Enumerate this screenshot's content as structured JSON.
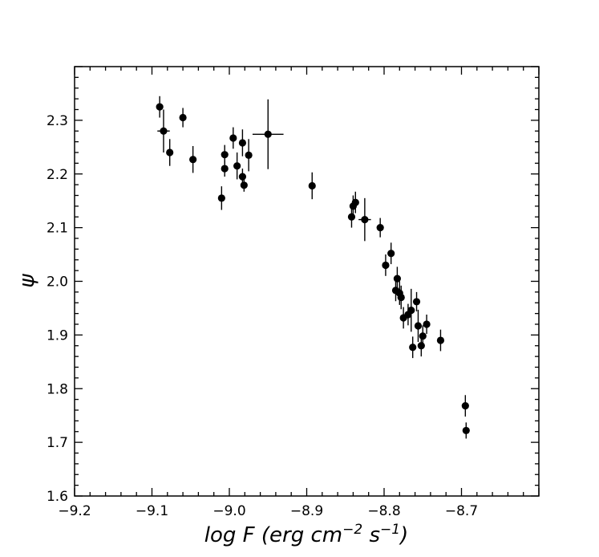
{
  "chart_data": {
    "type": "scatter",
    "xlabel": "log F (erg cm",
    "xlabel_exp1": "−2",
    "xlabel_mid": " s",
    "xlabel_exp2": "−1",
    "xlabel_end": ")",
    "ylabel": "ψ",
    "xlim": [
      -9.2,
      -8.6
    ],
    "ylim": [
      1.6,
      2.4
    ],
    "x_ticks": [
      -9.2,
      -9.1,
      -9.0,
      -8.9,
      -8.8,
      -8.7
    ],
    "x_tick_labels": [
      "−9.2",
      "−9.1",
      "−9.0",
      "−8.9",
      "−8.8",
      "−8.7"
    ],
    "y_ticks": [
      1.6,
      1.7,
      1.8,
      1.9,
      2.0,
      2.1,
      2.2,
      2.3
    ],
    "y_tick_labels": [
      "1.6",
      "1.7",
      "1.8",
      "1.9",
      "2.0",
      "2.1",
      "2.2",
      "2.3"
    ],
    "grid": false,
    "marker_color": "#000000",
    "points": [
      {
        "x": -9.09,
        "y": 2.325,
        "yerr": 0.02,
        "xerr": 0
      },
      {
        "x": -9.085,
        "y": 2.28,
        "yerr": 0.04,
        "xerr": 0.008
      },
      {
        "x": -9.077,
        "y": 2.24,
        "yerr": 0.025,
        "xerr": 0
      },
      {
        "x": -9.06,
        "y": 2.305,
        "yerr": 0.018,
        "xerr": 0
      },
      {
        "x": -9.047,
        "y": 2.227,
        "yerr": 0.025,
        "xerr": 0
      },
      {
        "x": -9.01,
        "y": 2.155,
        "yerr": 0.022,
        "xerr": 0
      },
      {
        "x": -9.006,
        "y": 2.236,
        "yerr": 0.018,
        "xerr": 0
      },
      {
        "x": -9.006,
        "y": 2.21,
        "yerr": 0.015,
        "xerr": 0
      },
      {
        "x": -8.995,
        "y": 2.267,
        "yerr": 0.02,
        "xerr": 0
      },
      {
        "x": -8.99,
        "y": 2.215,
        "yerr": 0.025,
        "xerr": 0
      },
      {
        "x": -8.983,
        "y": 2.258,
        "yerr": 0.025,
        "xerr": 0
      },
      {
        "x": -8.983,
        "y": 2.195,
        "yerr": 0.015,
        "xerr": 0
      },
      {
        "x": -8.981,
        "y": 2.179,
        "yerr": 0.012,
        "xerr": 0
      },
      {
        "x": -8.975,
        "y": 2.235,
        "yerr": 0.03,
        "xerr": 0
      },
      {
        "x": -8.95,
        "y": 2.274,
        "yerr": 0.065,
        "xerr": 0.02
      },
      {
        "x": -8.893,
        "y": 2.178,
        "yerr": 0.025,
        "xerr": 0
      },
      {
        "x": -8.842,
        "y": 2.12,
        "yerr": 0.02,
        "xerr": 0
      },
      {
        "x": -8.84,
        "y": 2.14,
        "yerr": 0.02,
        "xerr": 0
      },
      {
        "x": -8.837,
        "y": 2.147,
        "yerr": 0.02,
        "xerr": 0
      },
      {
        "x": -8.825,
        "y": 2.115,
        "yerr": 0.04,
        "xerr": 0.008
      },
      {
        "x": -8.805,
        "y": 2.1,
        "yerr": 0.018,
        "xerr": 0
      },
      {
        "x": -8.798,
        "y": 2.03,
        "yerr": 0.02,
        "xerr": 0
      },
      {
        "x": -8.791,
        "y": 2.052,
        "yerr": 0.02,
        "xerr": 0
      },
      {
        "x": -8.785,
        "y": 1.983,
        "yerr": 0.02,
        "xerr": 0
      },
      {
        "x": -8.783,
        "y": 2.005,
        "yerr": 0.022,
        "xerr": 0
      },
      {
        "x": -8.78,
        "y": 1.978,
        "yerr": 0.022,
        "xerr": 0
      },
      {
        "x": -8.778,
        "y": 1.97,
        "yerr": 0.022,
        "xerr": 0
      },
      {
        "x": -8.775,
        "y": 1.932,
        "yerr": 0.02,
        "xerr": 0
      },
      {
        "x": -8.769,
        "y": 1.938,
        "yerr": 0.02,
        "xerr": 0
      },
      {
        "x": -8.765,
        "y": 1.946,
        "yerr": 0.04,
        "xerr": 0
      },
      {
        "x": -8.763,
        "y": 1.877,
        "yerr": 0.02,
        "xerr": 0
      },
      {
        "x": -8.758,
        "y": 1.962,
        "yerr": 0.018,
        "xerr": 0
      },
      {
        "x": -8.756,
        "y": 1.917,
        "yerr": 0.03,
        "xerr": 0
      },
      {
        "x": -8.752,
        "y": 1.88,
        "yerr": 0.02,
        "xerr": 0
      },
      {
        "x": -8.75,
        "y": 1.898,
        "yerr": 0.02,
        "xerr": 0
      },
      {
        "x": -8.745,
        "y": 1.92,
        "yerr": 0.018,
        "xerr": 0
      },
      {
        "x": -8.727,
        "y": 1.89,
        "yerr": 0.02,
        "xerr": 0
      },
      {
        "x": -8.695,
        "y": 1.768,
        "yerr": 0.02,
        "xerr": 0
      },
      {
        "x": -8.694,
        "y": 1.722,
        "yerr": 0.015,
        "xerr": 0
      }
    ]
  }
}
